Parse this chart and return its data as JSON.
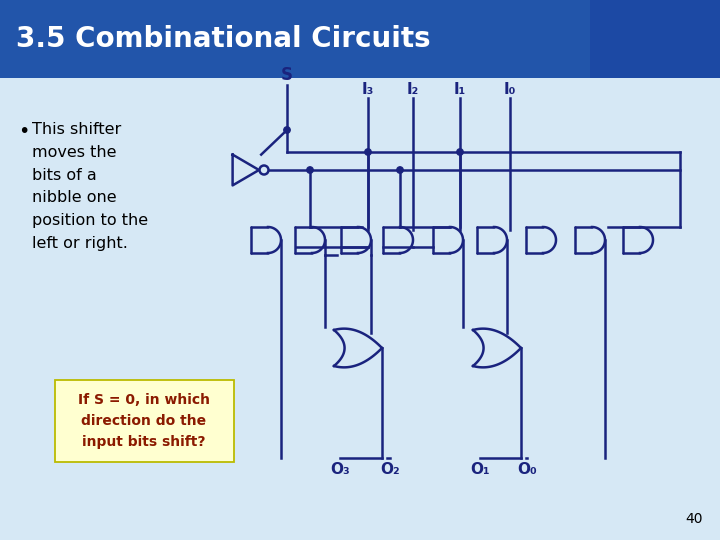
{
  "title": "3.5 Combinational Circuits",
  "title_color": "#FFFFFF",
  "title_bg_color": "#2255AA",
  "slide_bg_color": "#D6E8F5",
  "circuit_color": "#1A237E",
  "bullet_text": "This shifter\nmoves the\nbits of a\nnibble one\nposition to the\nleft or right.",
  "question_text": "If S = 0, in which\ndirection do the\ninput bits shift?",
  "question_color": "#8B1A00",
  "question_bg": "#FFFFD0",
  "page_number": "40",
  "input_labels": [
    "I₃",
    "I₂",
    "I₁",
    "I₀"
  ],
  "output_labels": [
    "O₃",
    "O₂",
    "O₁",
    "O₀"
  ],
  "s_label": "S"
}
